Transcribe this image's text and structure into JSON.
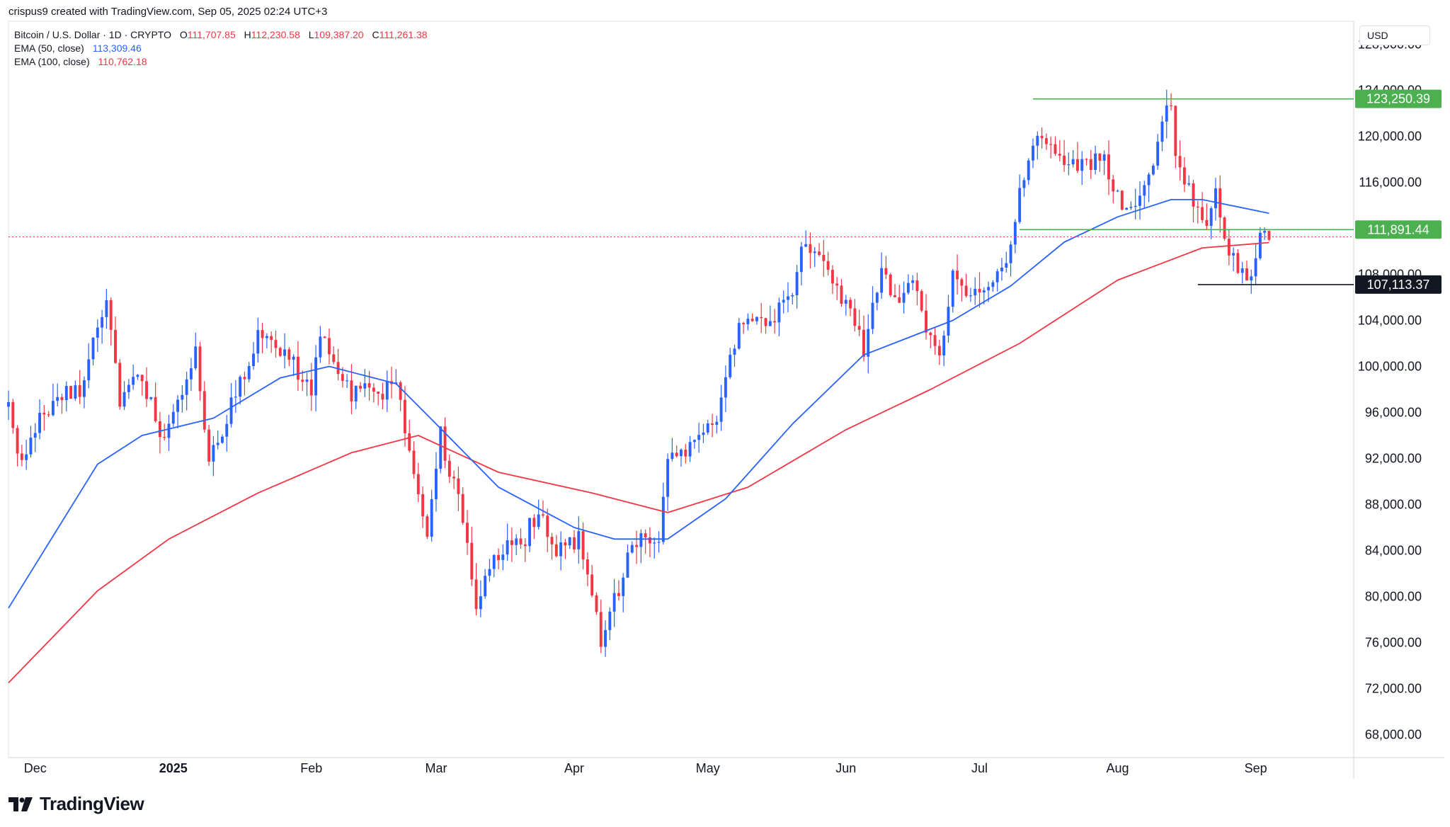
{
  "header": {
    "credit": "crispus9 created with TradingView.com, Sep 05, 2025 02:24 UTC+3",
    "symbol": "Bitcoin / U.S. Dollar · 1D · CRYPTO",
    "ohlc": [
      {
        "k": "O",
        "v": "111,707.85"
      },
      {
        "k": "H",
        "v": "112,230.58"
      },
      {
        "k": "L",
        "v": "109,387.20"
      },
      {
        "k": "C",
        "v": "111,261.38"
      }
    ],
    "ema50_label": "EMA (50, close)",
    "ema50_value": "113,309.46",
    "ema100_label": "EMA (100, close)",
    "ema100_value": "110,762.18"
  },
  "currency": "USD",
  "footer": {
    "brand": "TradingView"
  },
  "colors": {
    "up": "#2962ff",
    "down": "#f23645",
    "ema50": "#2962ff",
    "ema100": "#f23645",
    "level_green": "#4caf50",
    "level_black": "#131722"
  },
  "chart_data": {
    "type": "candlestick",
    "title": "Bitcoin / U.S. Dollar · 1D · CRYPTO",
    "ylim": [
      66000,
      130000
    ],
    "y_ticks": [
      "128,000.00",
      "124,000.00",
      "120,000.00",
      "116,000.00",
      "112,000.00",
      "108,000.00",
      "104,000.00",
      "100,000.00",
      "96,000.00",
      "92,000.00",
      "88,000.00",
      "84,000.00",
      "80,000.00",
      "76,000.00",
      "72,000.00",
      "68,000.00"
    ],
    "y_tick_values": [
      128000,
      124000,
      120000,
      116000,
      112000,
      108000,
      104000,
      100000,
      96000,
      92000,
      88000,
      84000,
      80000,
      76000,
      72000,
      68000
    ],
    "x_labels": [
      {
        "label": "Dec",
        "date": "2024-12-01",
        "bold": false
      },
      {
        "label": "2025",
        "date": "2025-01-01",
        "bold": true
      },
      {
        "label": "Feb",
        "date": "2025-02-01",
        "bold": false
      },
      {
        "label": "Mar",
        "date": "2025-03-01",
        "bold": false
      },
      {
        "label": "Apr",
        "date": "2025-04-01",
        "bold": false
      },
      {
        "label": "May",
        "date": "2025-05-01",
        "bold": false
      },
      {
        "label": "Jun",
        "date": "2025-06-01",
        "bold": false
      },
      {
        "label": "Jul",
        "date": "2025-07-01",
        "bold": false
      },
      {
        "label": "Aug",
        "date": "2025-08-01",
        "bold": false
      },
      {
        "label": "Sep",
        "date": "2025-09-01",
        "bold": false
      }
    ],
    "x_range": [
      "2024-11-25",
      "2025-09-23"
    ],
    "anchors": [
      [
        "2024-11-25",
        96500
      ],
      [
        "2024-11-27",
        92000
      ],
      [
        "2024-12-05",
        97000
      ],
      [
        "2024-12-09",
        98000
      ],
      [
        "2024-12-11",
        97500
      ],
      [
        "2024-12-17",
        106500
      ],
      [
        "2024-12-20",
        97000
      ],
      [
        "2024-12-25",
        99000
      ],
      [
        "2024-12-30",
        93000
      ],
      [
        "2025-01-06",
        102000
      ],
      [
        "2025-01-09",
        92000
      ],
      [
        "2025-01-13",
        95500
      ],
      [
        "2025-01-20",
        102500
      ],
      [
        "2025-01-27",
        101000
      ],
      [
        "2025-02-01",
        97500
      ],
      [
        "2025-02-03",
        102500
      ],
      [
        "2025-02-10",
        97500
      ],
      [
        "2025-02-20",
        98000
      ],
      [
        "2025-02-24",
        91000
      ],
      [
        "2025-02-27",
        84500
      ],
      [
        "2025-03-02",
        94000
      ],
      [
        "2025-03-07",
        87000
      ],
      [
        "2025-03-10",
        78500
      ],
      [
        "2025-03-14",
        83500
      ],
      [
        "2025-03-20",
        84500
      ],
      [
        "2025-03-24",
        87500
      ],
      [
        "2025-03-28",
        84000
      ],
      [
        "2025-04-02",
        85000
      ],
      [
        "2025-04-07",
        76000
      ],
      [
        "2025-04-10",
        79500
      ],
      [
        "2025-04-14",
        84500
      ],
      [
        "2025-04-20",
        85000
      ],
      [
        "2025-04-22",
        91500
      ],
      [
        "2025-04-30",
        94500
      ],
      [
        "2025-05-03",
        95800
      ],
      [
        "2025-05-08",
        103500
      ],
      [
        "2025-05-15",
        103500
      ],
      [
        "2025-05-20",
        107000
      ],
      [
        "2025-05-22",
        111000
      ],
      [
        "2025-05-27",
        108800
      ],
      [
        "2025-06-02",
        104500
      ],
      [
        "2025-06-05",
        101500
      ],
      [
        "2025-06-09",
        109000
      ],
      [
        "2025-06-12",
        106000
      ],
      [
        "2025-06-16",
        106800
      ],
      [
        "2025-06-22",
        100700
      ],
      [
        "2025-06-25",
        107500
      ],
      [
        "2025-07-01",
        106000
      ],
      [
        "2025-07-07",
        108100
      ],
      [
        "2025-07-10",
        116000
      ],
      [
        "2025-07-14",
        119500
      ],
      [
        "2025-07-20",
        117500
      ],
      [
        "2025-07-25",
        117700
      ],
      [
        "2025-07-29",
        117900
      ],
      [
        "2025-08-02",
        113300
      ],
      [
        "2025-08-05",
        114000
      ],
      [
        "2025-08-08",
        116700
      ],
      [
        "2025-08-13",
        123300
      ],
      [
        "2025-08-14",
        118400
      ],
      [
        "2025-08-19",
        113000
      ],
      [
        "2025-08-21",
        112500
      ],
      [
        "2025-08-23",
        115500
      ],
      [
        "2025-08-26",
        109800
      ],
      [
        "2025-08-29",
        108500
      ],
      [
        "2025-08-31",
        108200
      ],
      [
        "2025-09-02",
        111200
      ],
      [
        "2025-09-04",
        111261
      ]
    ],
    "ema50": [
      [
        "2024-11-25",
        79000
      ],
      [
        "2024-12-15",
        91500
      ],
      [
        "2024-12-25",
        94000
      ],
      [
        "2025-01-10",
        95500
      ],
      [
        "2025-01-25",
        99000
      ],
      [
        "2025-02-05",
        100000
      ],
      [
        "2025-02-20",
        98500
      ],
      [
        "2025-03-01",
        95000
      ],
      [
        "2025-03-15",
        89500
      ],
      [
        "2025-04-01",
        86000
      ],
      [
        "2025-04-10",
        85000
      ],
      [
        "2025-04-22",
        85000
      ],
      [
        "2025-05-05",
        88500
      ],
      [
        "2025-05-20",
        95000
      ],
      [
        "2025-06-05",
        101000
      ],
      [
        "2025-06-25",
        104000
      ],
      [
        "2025-07-08",
        107000
      ],
      [
        "2025-07-20",
        110800
      ],
      [
        "2025-08-01",
        113000
      ],
      [
        "2025-08-13",
        114500
      ],
      [
        "2025-08-20",
        114500
      ],
      [
        "2025-09-04",
        113309
      ]
    ],
    "ema100": [
      [
        "2024-11-25",
        72500
      ],
      [
        "2024-12-15",
        80500
      ],
      [
        "2024-12-31",
        85000
      ],
      [
        "2025-01-20",
        89000
      ],
      [
        "2025-02-10",
        92500
      ],
      [
        "2025-02-25",
        94000
      ],
      [
        "2025-03-15",
        90800
      ],
      [
        "2025-04-05",
        89000
      ],
      [
        "2025-04-22",
        87300
      ],
      [
        "2025-05-10",
        89500
      ],
      [
        "2025-06-01",
        94500
      ],
      [
        "2025-06-20",
        98000
      ],
      [
        "2025-07-10",
        102000
      ],
      [
        "2025-08-01",
        107500
      ],
      [
        "2025-08-20",
        110300
      ],
      [
        "2025-09-04",
        110762
      ]
    ],
    "levels": [
      {
        "value": 123250.39,
        "label": "123,250.39",
        "color": "#4caf50",
        "from": "2025-07-13",
        "to": "2025-09-23"
      },
      {
        "value": 111891.44,
        "label": "111,891.44",
        "color": "#4caf50",
        "from": "2025-07-10",
        "to": "2025-09-23"
      },
      {
        "value": 107113.37,
        "label": "107,113.37",
        "color": "#131722",
        "from": "2025-08-19",
        "to": "2025-09-23"
      }
    ],
    "last_price": {
      "value": 111261.38,
      "color": "#f23645"
    }
  }
}
